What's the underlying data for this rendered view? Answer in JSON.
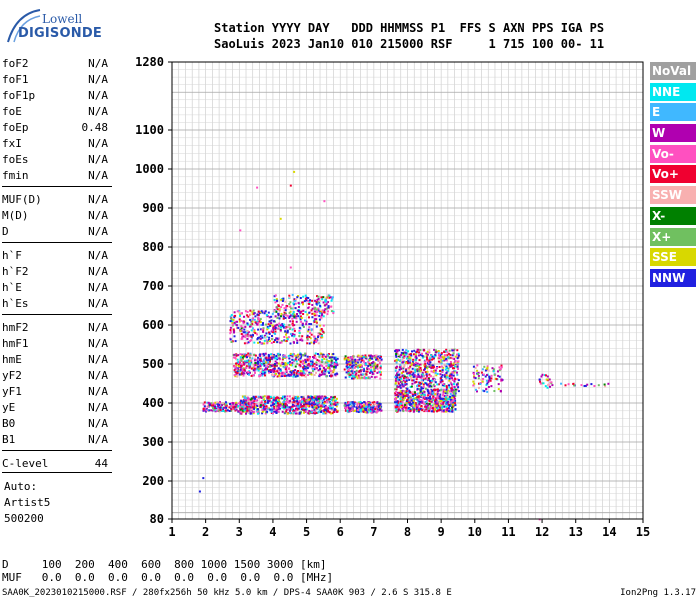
{
  "logo": {
    "line1": "Lowell",
    "line2": "DIGISONDE"
  },
  "header": {
    "line1": "Station YYYY DAY   DDD HHMMSS P1  FFS S AXN PPS IGA PS",
    "line2": "SaoLuis 2023 Jan10 010 215000 RSF     1 715 100 00- 11"
  },
  "params": [
    {
      "k": "foF2",
      "v": "N/A"
    },
    {
      "k": "foF1",
      "v": "N/A"
    },
    {
      "k": "foF1p",
      "v": "N/A"
    },
    {
      "k": "foE",
      "v": "N/A"
    },
    {
      "k": "foEp",
      "v": "0.48"
    },
    {
      "k": "fxI",
      "v": "N/A"
    },
    {
      "k": "foEs",
      "v": "N/A"
    },
    {
      "k": "fmin",
      "v": "N/A"
    },
    {
      "k": "MUF(D)",
      "v": "N/A"
    },
    {
      "k": "M(D)",
      "v": "N/A"
    },
    {
      "k": "D",
      "v": "N/A"
    },
    {
      "k": "h`F",
      "v": "N/A"
    },
    {
      "k": "h`F2",
      "v": "N/A"
    },
    {
      "k": "h`E",
      "v": "N/A"
    },
    {
      "k": "h`Es",
      "v": "N/A"
    },
    {
      "k": "hmF2",
      "v": "N/A"
    },
    {
      "k": "hmF1",
      "v": "N/A"
    },
    {
      "k": "hmE",
      "v": "N/A"
    },
    {
      "k": "yF2",
      "v": "N/A"
    },
    {
      "k": "yF1",
      "v": "N/A"
    },
    {
      "k": "yE",
      "v": "N/A"
    },
    {
      "k": "B0",
      "v": "N/A"
    },
    {
      "k": "B1",
      "v": "N/A"
    },
    {
      "k": "C-level",
      "v": "44"
    }
  ],
  "autoscale": {
    "line1": "Auto:",
    "line2": "Artist5",
    "line3": "500200"
  },
  "bottom": {
    "dline": "D     100  200  400  600  800 1000 1500 3000 [km]",
    "mline": "MUF   0.0  0.0  0.0  0.0  0.0  0.0  0.0  0.0 [MHz]"
  },
  "footer": "SAA0K_2023010215000.RSF / 280fx256h 50 kHz 5.0 km / DPS-4 SAA0K 903 / 2.6 S 315.8 E",
  "version": "Ion2Png 1.3.17",
  "legend": [
    {
      "label": "NoVal",
      "color": "#a0a0a0"
    },
    {
      "label": "NNE",
      "color": "#00e8f0"
    },
    {
      "label": "E",
      "color": "#40b8ff"
    },
    {
      "label": "W",
      "color": "#b000b0"
    },
    {
      "label": "Vo-",
      "color": "#ff50c0"
    },
    {
      "label": "Vo+",
      "color": "#f00030"
    },
    {
      "label": "SSW",
      "color": "#f8b0b0"
    },
    {
      "label": "X-",
      "color": "#008000"
    },
    {
      "label": "X+",
      "color": "#70c060"
    },
    {
      "label": "SSE",
      "color": "#d8d800"
    },
    {
      "label": "NNW",
      "color": "#2020e0"
    }
  ],
  "chart_data": {
    "type": "scatter",
    "title": "",
    "xlabel": "",
    "ylabel": "",
    "xlim": [
      1,
      15
    ],
    "ylim": [
      80,
      1280
    ],
    "xticks": [
      "1",
      "2",
      "3",
      "4",
      "5",
      "6",
      "7",
      "8",
      "9",
      "10",
      "11",
      "12",
      "13",
      "14",
      "15"
    ],
    "yticks": [
      "80",
      "200",
      "300",
      "400",
      "500",
      "600",
      "700",
      "800",
      "900",
      "1000",
      "1100",
      "1280"
    ],
    "grid": true,
    "clusters": [
      {
        "x": [
          1.9,
          3.3
        ],
        "y": [
          380,
          405
        ],
        "n": 220
      },
      {
        "x": [
          3.0,
          5.9
        ],
        "y": [
          375,
          420
        ],
        "n": 700
      },
      {
        "x": [
          6.1,
          7.2
        ],
        "y": [
          378,
          405
        ],
        "n": 260
      },
      {
        "x": [
          7.6,
          9.4
        ],
        "y": [
          380,
          430
        ],
        "n": 520
      },
      {
        "x": [
          2.8,
          5.9
        ],
        "y": [
          470,
          530
        ],
        "n": 650
      },
      {
        "x": [
          6.1,
          7.2
        ],
        "y": [
          465,
          525
        ],
        "n": 260
      },
      {
        "x": [
          7.6,
          9.5
        ],
        "y": [
          430,
          540
        ],
        "n": 650
      },
      {
        "x": [
          2.7,
          5.5
        ],
        "y": [
          555,
          640
        ],
        "n": 450
      },
      {
        "x": [
          4.0,
          5.8
        ],
        "y": [
          630,
          680
        ],
        "n": 160
      },
      {
        "x": [
          9.9,
          10.8
        ],
        "y": [
          430,
          500
        ],
        "n": 90
      },
      {
        "x": [
          11.9,
          12.3
        ],
        "y": [
          440,
          475
        ],
        "n": 25
      },
      {
        "x": [
          12.5,
          14.0
        ],
        "y": [
          445,
          452
        ],
        "n": 18
      }
    ],
    "points": [
      {
        "x": 1.9,
        "y": 210
      },
      {
        "x": 1.8,
        "y": 170
      },
      {
        "x": 3.0,
        "y": 845
      },
      {
        "x": 3.5,
        "y": 955
      },
      {
        "x": 4.6,
        "y": 995
      },
      {
        "x": 4.5,
        "y": 960
      },
      {
        "x": 5.5,
        "y": 920
      },
      {
        "x": 4.2,
        "y": 875
      },
      {
        "x": 4.5,
        "y": 750
      },
      {
        "x": 11.9,
        "y": 82
      }
    ]
  }
}
